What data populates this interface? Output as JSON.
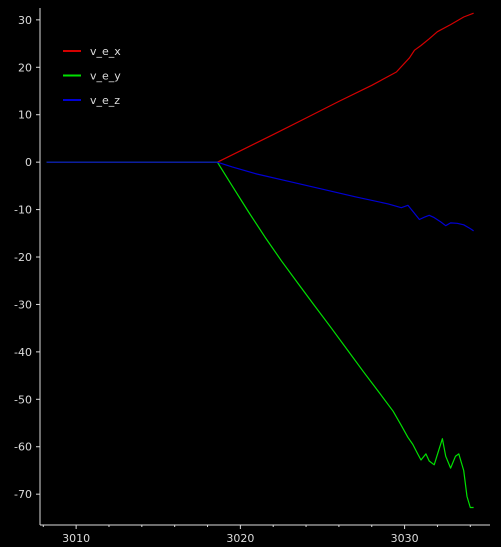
{
  "chart_data": {
    "type": "line",
    "title": "",
    "xlabel": "",
    "ylabel": "",
    "xlim": [
      3007.8,
      3035.2
    ],
    "ylim": [
      -76.5,
      32.5
    ],
    "xticks": [
      3010,
      3020,
      3030
    ],
    "yticks": [
      30,
      20,
      10,
      0,
      -10,
      -20,
      -30,
      -40,
      -50,
      -60,
      -70
    ],
    "xtick_labels": [
      "3010",
      "3020",
      "3030"
    ],
    "ytick_labels": [
      "30",
      "20",
      "10",
      "0",
      "-10",
      "-20",
      "-30",
      "-40",
      "-50",
      "-60",
      "-70"
    ],
    "grid": false,
    "legend_position": "top-left",
    "background": "#000000",
    "axis_color": "#dcdcdc",
    "series": [
      {
        "name": "v_e_x",
        "color": "#d40000",
        "points": [
          [
            3008.2,
            0
          ],
          [
            3018.6,
            0
          ],
          [
            3020,
            2.4
          ],
          [
            3022,
            5.8
          ],
          [
            3024,
            9.3
          ],
          [
            3026,
            12.8
          ],
          [
            3028,
            16.2
          ],
          [
            3029.5,
            19.0
          ],
          [
            3030.3,
            22.0
          ],
          [
            3030.6,
            23.6
          ],
          [
            3031,
            24.6
          ],
          [
            3031.5,
            26.0
          ],
          [
            3032,
            27.5
          ],
          [
            3032.8,
            29.0
          ],
          [
            3033.6,
            30.6
          ],
          [
            3034.2,
            31.4
          ]
        ]
      },
      {
        "name": "v_e_y",
        "color": "#00e000",
        "points": [
          [
            3008.2,
            0
          ],
          [
            3018.6,
            0
          ],
          [
            3019.5,
            -5
          ],
          [
            3020.5,
            -10.5
          ],
          [
            3021.5,
            -15.8
          ],
          [
            3022.5,
            -20.8
          ],
          [
            3023.5,
            -25.5
          ],
          [
            3024.5,
            -30.2
          ],
          [
            3025.5,
            -34.8
          ],
          [
            3026.5,
            -39.5
          ],
          [
            3027.5,
            -44.2
          ],
          [
            3028.5,
            -48.8
          ],
          [
            3029.3,
            -52.5
          ],
          [
            3029.8,
            -55.5
          ],
          [
            3030.2,
            -58
          ],
          [
            3030.5,
            -59.5
          ],
          [
            3030.8,
            -61.5
          ],
          [
            3031.0,
            -62.8
          ],
          [
            3031.3,
            -61.5
          ],
          [
            3031.5,
            -63.0
          ],
          [
            3031.8,
            -63.8
          ],
          [
            3032.1,
            -60.5
          ],
          [
            3032.3,
            -58.3
          ],
          [
            3032.5,
            -62.0
          ],
          [
            3032.8,
            -64.5
          ],
          [
            3033.1,
            -62.0
          ],
          [
            3033.3,
            -61.5
          ],
          [
            3033.6,
            -65.0
          ],
          [
            3033.8,
            -70.5
          ],
          [
            3034.0,
            -72.8
          ],
          [
            3034.2,
            -72.8
          ]
        ]
      },
      {
        "name": "v_e_z",
        "color": "#0000d4",
        "points": [
          [
            3008.2,
            0
          ],
          [
            3018.6,
            0
          ],
          [
            3019.5,
            -1.0
          ],
          [
            3021,
            -2.5
          ],
          [
            3023,
            -4.1
          ],
          [
            3025,
            -5.7
          ],
          [
            3027,
            -7.3
          ],
          [
            3029,
            -8.8
          ],
          [
            3029.8,
            -9.6
          ],
          [
            3030.2,
            -9.1
          ],
          [
            3030.6,
            -10.8
          ],
          [
            3030.9,
            -12.1
          ],
          [
            3031.2,
            -11.6
          ],
          [
            3031.5,
            -11.2
          ],
          [
            3031.8,
            -11.7
          ],
          [
            3032.2,
            -12.6
          ],
          [
            3032.5,
            -13.4
          ],
          [
            3032.8,
            -12.8
          ],
          [
            3033.2,
            -12.9
          ],
          [
            3033.6,
            -13.2
          ],
          [
            3034.0,
            -14.0
          ],
          [
            3034.2,
            -14.5
          ]
        ]
      }
    ]
  }
}
